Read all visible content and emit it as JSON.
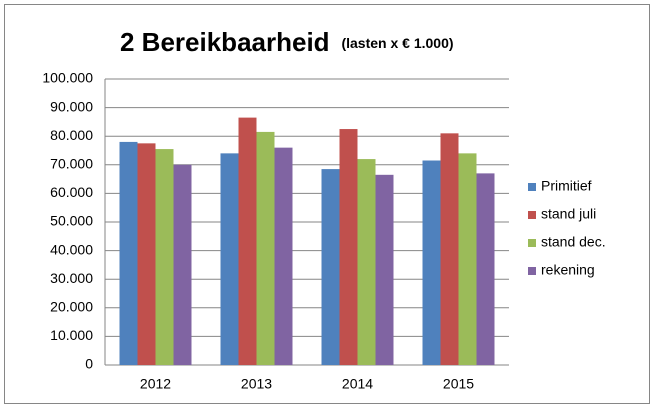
{
  "chart_data": {
    "type": "bar",
    "title": "2 Bereikbaarheid",
    "subtitle": "(lasten  x € 1.000)",
    "categories": [
      "2012",
      "2013",
      "2014",
      "2015"
    ],
    "series": [
      {
        "name": "Primitief",
        "color": "#4f81bd",
        "values": [
          78000,
          74000,
          68500,
          71500
        ]
      },
      {
        "name": "stand juli",
        "color": "#c0504d",
        "values": [
          77500,
          86500,
          82500,
          81000
        ]
      },
      {
        "name": "stand dec.",
        "color": "#9bbb59",
        "values": [
          75500,
          81500,
          72000,
          74000
        ]
      },
      {
        "name": "rekening",
        "color": "#8064a2",
        "values": [
          70000,
          76000,
          66500,
          67000
        ]
      }
    ],
    "ylim": [
      0,
      100000
    ],
    "yticks": [
      0,
      {
        "value": 10000,
        "label": "10.000"
      },
      {
        "value": 20000,
        "label": "20.000"
      },
      {
        "value": 30000,
        "label": "30.000"
      },
      {
        "value": 40000,
        "label": "40.000"
      },
      {
        "value": 50000,
        "label": "50.000"
      },
      {
        "value": 60000,
        "label": "60.000"
      },
      {
        "value": 70000,
        "label": "70.000"
      },
      {
        "value": 80000,
        "label": "80.000"
      },
      {
        "value": 90000,
        "label": "90.000"
      },
      {
        "value": 100000,
        "label": "100.000"
      }
    ],
    "grid": true,
    "legend": "right"
  }
}
